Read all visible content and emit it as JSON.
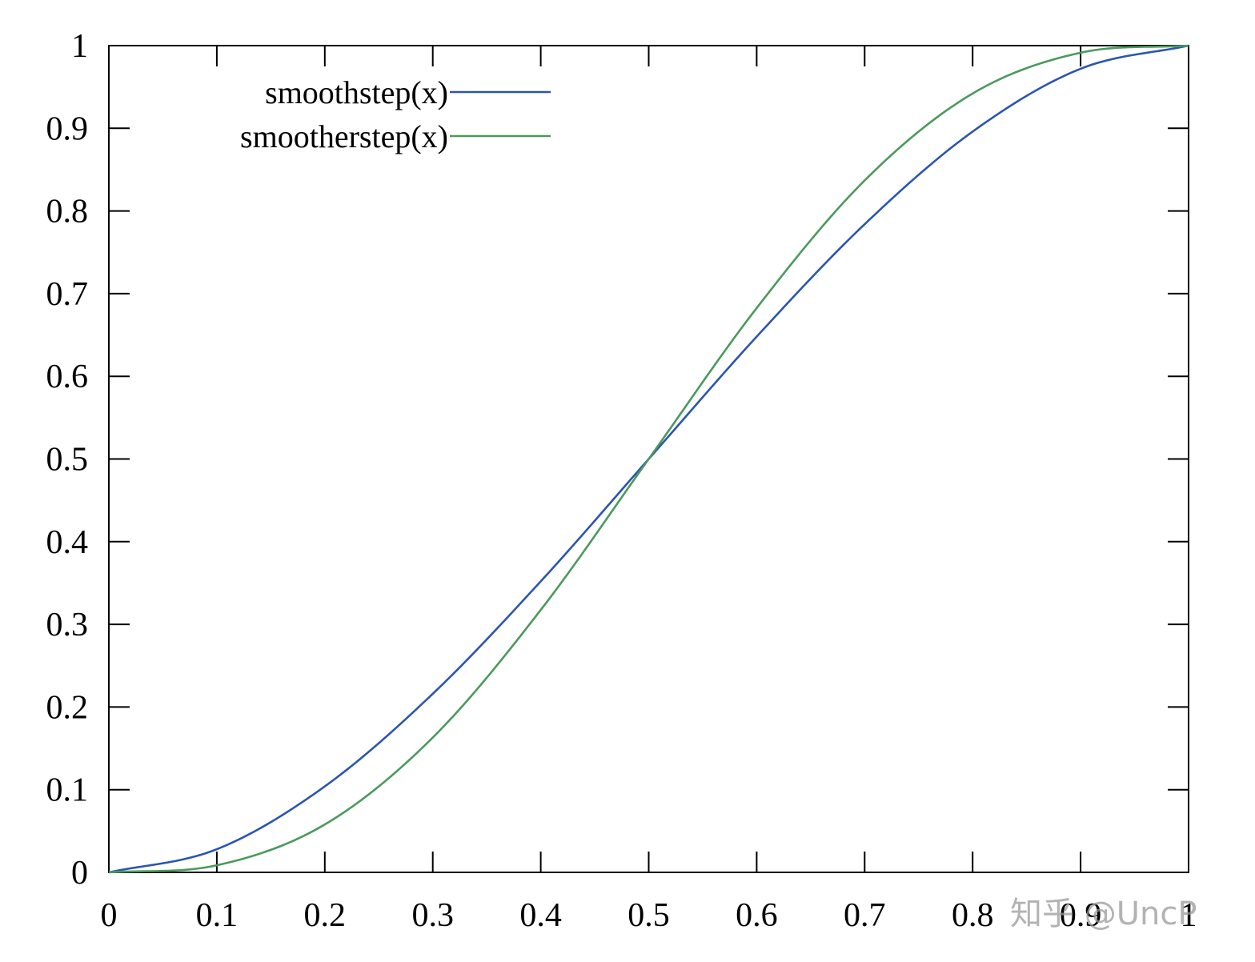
{
  "chart_data": {
    "type": "line",
    "title": "",
    "xlabel": "",
    "ylabel": "",
    "xlim": [
      0,
      1
    ],
    "ylim": [
      0,
      1
    ],
    "x_ticks": [
      "0",
      "0.1",
      "0.2",
      "0.3",
      "0.4",
      "0.5",
      "0.6",
      "0.7",
      "0.8",
      "0.9",
      "1"
    ],
    "y_ticks": [
      "0",
      "0.1",
      "0.2",
      "0.3",
      "0.4",
      "0.5",
      "0.6",
      "0.7",
      "0.8",
      "0.9",
      "1"
    ],
    "grid": false,
    "legend_position": "top-left",
    "x": [
      0,
      0.1,
      0.2,
      0.3,
      0.4,
      0.5,
      0.6,
      0.7,
      0.8,
      0.9,
      1
    ],
    "series": [
      {
        "name": "smoothstep(x)",
        "color": "#2b55b0",
        "values": [
          0,
          0.028,
          0.104,
          0.216,
          0.352,
          0.5,
          0.648,
          0.784,
          0.896,
          0.972,
          1
        ]
      },
      {
        "name": "smootherstep(x)",
        "color": "#4a9a5c",
        "values": [
          0,
          0.00856,
          0.05792,
          0.16308,
          0.31744,
          0.5,
          0.68256,
          0.83692,
          0.94208,
          0.99144,
          1
        ]
      }
    ]
  },
  "watermark": "知乎 @UncP"
}
